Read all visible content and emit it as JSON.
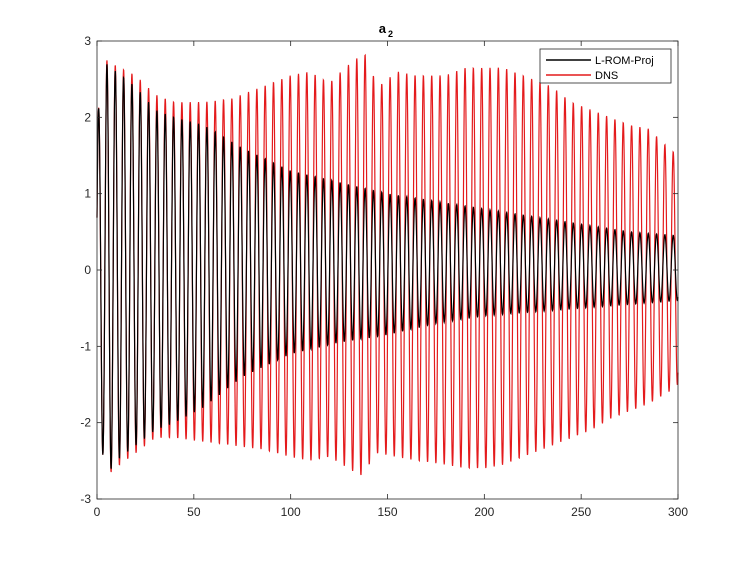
{
  "chart_data": {
    "type": "line",
    "title": "a",
    "title_subscript": "2",
    "xlabel": "",
    "ylabel": "",
    "xlim": [
      0,
      300
    ],
    "ylim": [
      -3,
      3
    ],
    "xticks": [
      0,
      50,
      100,
      150,
      200,
      250,
      300
    ],
    "yticks": [
      -3,
      -2,
      -1,
      0,
      1,
      2,
      3
    ],
    "grid": false,
    "legend_position": "top-right",
    "oscillation_period": 4.3,
    "series": [
      {
        "name": "L-ROM-Proj",
        "color": "#000000",
        "envelope_upper": [
          [
            0,
            2.0
          ],
          [
            5,
            2.7
          ],
          [
            10,
            2.6
          ],
          [
            20,
            2.4
          ],
          [
            30,
            2.1
          ],
          [
            40,
            2.0
          ],
          [
            55,
            1.9
          ],
          [
            75,
            1.6
          ],
          [
            100,
            1.3
          ],
          [
            125,
            1.15
          ],
          [
            150,
            1.0
          ],
          [
            175,
            0.9
          ],
          [
            200,
            0.8
          ],
          [
            225,
            0.7
          ],
          [
            250,
            0.6
          ],
          [
            275,
            0.5
          ],
          [
            300,
            0.45
          ]
        ],
        "envelope_lower": [
          [
            0,
            -2.0
          ],
          [
            5,
            -2.7
          ],
          [
            10,
            -2.5
          ],
          [
            20,
            -2.3
          ],
          [
            30,
            -2.1
          ],
          [
            40,
            -2.0
          ],
          [
            55,
            -1.8
          ],
          [
            75,
            -1.4
          ],
          [
            100,
            -1.1
          ],
          [
            125,
            -0.95
          ],
          [
            150,
            -0.85
          ],
          [
            175,
            -0.7
          ],
          [
            200,
            -0.6
          ],
          [
            225,
            -0.55
          ],
          [
            250,
            -0.5
          ],
          [
            275,
            -0.45
          ],
          [
            300,
            -0.4
          ]
        ]
      },
      {
        "name": "DNS",
        "color": "#e41a1c",
        "envelope_upper": [
          [
            0,
            2.0
          ],
          [
            5,
            2.75
          ],
          [
            12,
            2.65
          ],
          [
            20,
            2.55
          ],
          [
            30,
            2.3
          ],
          [
            40,
            2.2
          ],
          [
            55,
            2.2
          ],
          [
            70,
            2.25
          ],
          [
            85,
            2.4
          ],
          [
            100,
            2.55
          ],
          [
            110,
            2.6
          ],
          [
            120,
            2.45
          ],
          [
            128,
            2.65
          ],
          [
            138,
            2.85
          ],
          [
            145,
            2.4
          ],
          [
            155,
            2.6
          ],
          [
            165,
            2.55
          ],
          [
            180,
            2.55
          ],
          [
            190,
            2.65
          ],
          [
            200,
            2.65
          ],
          [
            210,
            2.65
          ],
          [
            220,
            2.55
          ],
          [
            235,
            2.4
          ],
          [
            245,
            2.2
          ],
          [
            255,
            2.1
          ],
          [
            265,
            2.0
          ],
          [
            275,
            1.9
          ],
          [
            285,
            1.85
          ],
          [
            295,
            1.6
          ],
          [
            300,
            1.5
          ]
        ],
        "envelope_lower": [
          [
            0,
            -2.0
          ],
          [
            5,
            -2.7
          ],
          [
            12,
            -2.55
          ],
          [
            20,
            -2.4
          ],
          [
            30,
            -2.2
          ],
          [
            40,
            -2.2
          ],
          [
            55,
            -2.25
          ],
          [
            70,
            -2.3
          ],
          [
            85,
            -2.35
          ],
          [
            100,
            -2.45
          ],
          [
            110,
            -2.5
          ],
          [
            120,
            -2.45
          ],
          [
            130,
            -2.6
          ],
          [
            136,
            -2.7
          ],
          [
            145,
            -2.4
          ],
          [
            155,
            -2.45
          ],
          [
            165,
            -2.5
          ],
          [
            180,
            -2.55
          ],
          [
            190,
            -2.6
          ],
          [
            200,
            -2.6
          ],
          [
            210,
            -2.55
          ],
          [
            220,
            -2.45
          ],
          [
            235,
            -2.3
          ],
          [
            245,
            -2.2
          ],
          [
            255,
            -2.1
          ],
          [
            265,
            -1.95
          ],
          [
            275,
            -1.85
          ],
          [
            285,
            -1.75
          ],
          [
            295,
            -1.6
          ],
          [
            300,
            -1.5
          ]
        ]
      }
    ]
  }
}
